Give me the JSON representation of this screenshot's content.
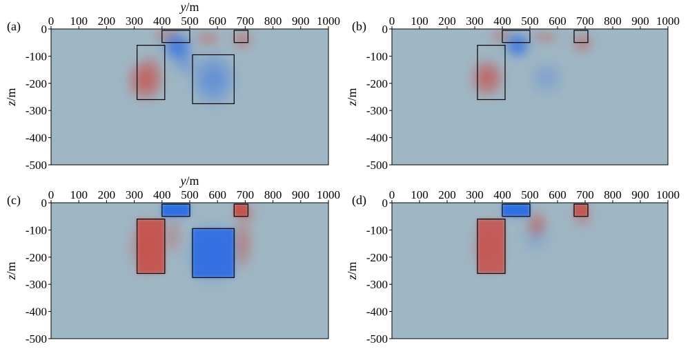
{
  "figure": {
    "panels": [
      "(a)",
      "(b)",
      "(c)",
      "(d)"
    ],
    "colors": {
      "background": "#9fb6c4",
      "positive": "#c94a43",
      "negative": "#2f6fe3",
      "box_outline": "#000000"
    }
  },
  "chart_data": [
    {
      "panel": "(a)",
      "type": "heatmap",
      "xlabel": "y/m",
      "ylabel": "z/m",
      "xlim": [
        0,
        1000
      ],
      "ylim": [
        -500,
        0
      ],
      "xticks": [
        0,
        100,
        200,
        300,
        400,
        500,
        600,
        700,
        800,
        900,
        1000
      ],
      "yticks": [
        0,
        -100,
        -200,
        -300,
        -400,
        -500
      ],
      "show_xlabel": true,
      "boxes": [
        {
          "y0": 310,
          "y1": 410,
          "z0": -60,
          "z1": -260
        },
        {
          "y0": 400,
          "y1": 500,
          "z0": -5,
          "z1": -50
        },
        {
          "y0": 510,
          "y1": 660,
          "z0": -95,
          "z1": -275
        },
        {
          "y0": 660,
          "y1": 710,
          "z0": -5,
          "z1": -50
        }
      ],
      "anomalies": [
        {
          "y": 340,
          "z": -190,
          "ry": 75,
          "rz": 85,
          "sign": 1,
          "amp": 0.85
        },
        {
          "y": 360,
          "z": -140,
          "ry": 50,
          "rz": 60,
          "sign": 1,
          "amp": 0.3
        },
        {
          "y": 420,
          "z": -25,
          "ry": 60,
          "rz": 35,
          "sign": 1,
          "amp": 0.45
        },
        {
          "y": 565,
          "z": -35,
          "ry": 55,
          "rz": 35,
          "sign": 1,
          "amp": 0.45
        },
        {
          "y": 690,
          "z": -40,
          "ry": 45,
          "rz": 40,
          "sign": 1,
          "amp": 0.55
        },
        {
          "y": 455,
          "z": -65,
          "ry": 60,
          "rz": 60,
          "sign": -1,
          "amp": 0.95
        },
        {
          "y": 585,
          "z": -185,
          "ry": 95,
          "rz": 110,
          "sign": -1,
          "amp": 0.6
        },
        {
          "y": 480,
          "z": -120,
          "ry": 50,
          "rz": 60,
          "sign": -1,
          "amp": 0.4
        }
      ]
    },
    {
      "panel": "(b)",
      "type": "heatmap",
      "xlabel": "y/m",
      "ylabel": "z/m",
      "xlim": [
        0,
        1000
      ],
      "ylim": [
        -500,
        0
      ],
      "xticks": [
        0,
        100,
        200,
        300,
        400,
        500,
        600,
        700,
        800,
        900,
        1000
      ],
      "yticks": [
        0,
        -100,
        -200,
        -300,
        -400,
        -500
      ],
      "show_xlabel": false,
      "boxes": [
        {
          "y0": 310,
          "y1": 410,
          "z0": -60,
          "z1": -260
        },
        {
          "y0": 400,
          "y1": 500,
          "z0": -5,
          "z1": -50
        },
        {
          "y0": 660,
          "y1": 710,
          "z0": -5,
          "z1": -50
        }
      ],
      "anomalies": [
        {
          "y": 345,
          "z": -180,
          "ry": 70,
          "rz": 80,
          "sign": 1,
          "amp": 0.8
        },
        {
          "y": 400,
          "z": -25,
          "ry": 55,
          "rz": 35,
          "sign": 1,
          "amp": 0.4
        },
        {
          "y": 555,
          "z": -30,
          "ry": 60,
          "rz": 30,
          "sign": 1,
          "amp": 0.4
        },
        {
          "y": 690,
          "z": -50,
          "ry": 45,
          "rz": 45,
          "sign": 1,
          "amp": 0.55
        },
        {
          "y": 455,
          "z": -60,
          "ry": 55,
          "rz": 55,
          "sign": -1,
          "amp": 0.95
        },
        {
          "y": 560,
          "z": -180,
          "ry": 70,
          "rz": 70,
          "sign": -1,
          "amp": 0.3
        }
      ]
    },
    {
      "panel": "(c)",
      "type": "heatmap",
      "xlabel": "y/m",
      "ylabel": "z/m",
      "xlim": [
        0,
        1000
      ],
      "ylim": [
        -500,
        0
      ],
      "xticks": [
        0,
        100,
        200,
        300,
        400,
        500,
        600,
        700,
        800,
        900,
        1000
      ],
      "yticks": [
        0,
        -100,
        -200,
        -300,
        -400,
        -500
      ],
      "show_xlabel": true,
      "boxes": [
        {
          "y0": 310,
          "y1": 410,
          "z0": -60,
          "z1": -260
        },
        {
          "y0": 400,
          "y1": 500,
          "z0": -5,
          "z1": -50
        },
        {
          "y0": 510,
          "y1": 660,
          "z0": -95,
          "z1": -275
        },
        {
          "y0": 660,
          "y1": 710,
          "z0": -5,
          "z1": -50
        }
      ],
      "fills": [
        {
          "y0": 310,
          "y1": 410,
          "z0": -60,
          "z1": -260,
          "sign": 1,
          "amp": 0.85
        },
        {
          "y0": 400,
          "y1": 500,
          "z0": -5,
          "z1": -50,
          "sign": -1,
          "amp": 1.0
        },
        {
          "y0": 510,
          "y1": 660,
          "z0": -95,
          "z1": -275,
          "sign": -1,
          "amp": 0.95
        },
        {
          "y0": 660,
          "y1": 710,
          "z0": -5,
          "z1": -50,
          "sign": 1,
          "amp": 0.9
        }
      ],
      "anomalies": [
        {
          "y": 345,
          "z": -160,
          "ry": 80,
          "rz": 120,
          "sign": 1,
          "amp": 0.45
        },
        {
          "y": 585,
          "z": -185,
          "ry": 110,
          "rz": 130,
          "sign": -1,
          "amp": 0.45
        },
        {
          "y": 450,
          "z": -30,
          "ry": 70,
          "rz": 40,
          "sign": -1,
          "amp": 0.35
        },
        {
          "y": 690,
          "z": -150,
          "ry": 45,
          "rz": 110,
          "sign": 1,
          "amp": 0.5
        },
        {
          "y": 700,
          "z": -40,
          "ry": 50,
          "rz": 45,
          "sign": 1,
          "amp": 0.4
        },
        {
          "y": 440,
          "z": -120,
          "ry": 40,
          "rz": 80,
          "sign": 1,
          "amp": 0.35
        }
      ]
    },
    {
      "panel": "(d)",
      "type": "heatmap",
      "xlabel": "y/m",
      "ylabel": "z/m",
      "xlim": [
        0,
        1000
      ],
      "ylim": [
        -500,
        0
      ],
      "xticks": [
        0,
        100,
        200,
        300,
        400,
        500,
        600,
        700,
        800,
        900,
        1000
      ],
      "yticks": [
        0,
        -100,
        -200,
        -300,
        -400,
        -500
      ],
      "show_xlabel": false,
      "boxes": [
        {
          "y0": 310,
          "y1": 410,
          "z0": -60,
          "z1": -260
        },
        {
          "y0": 400,
          "y1": 500,
          "z0": -5,
          "z1": -50
        },
        {
          "y0": 660,
          "y1": 710,
          "z0": -5,
          "z1": -50
        }
      ],
      "fills": [
        {
          "y0": 310,
          "y1": 410,
          "z0": -60,
          "z1": -260,
          "sign": 1,
          "amp": 0.8
        },
        {
          "y0": 400,
          "y1": 500,
          "z0": -5,
          "z1": -50,
          "sign": -1,
          "amp": 1.0
        },
        {
          "y0": 660,
          "y1": 710,
          "z0": -5,
          "z1": -50,
          "sign": 1,
          "amp": 0.85
        }
      ],
      "anomalies": [
        {
          "y": 345,
          "z": -160,
          "ry": 70,
          "rz": 110,
          "sign": 1,
          "amp": 0.35
        },
        {
          "y": 525,
          "z": -80,
          "ry": 45,
          "rz": 60,
          "sign": 1,
          "amp": 0.6
        },
        {
          "y": 690,
          "z": -50,
          "ry": 45,
          "rz": 50,
          "sign": 1,
          "amp": 0.4
        },
        {
          "y": 450,
          "z": -30,
          "ry": 65,
          "rz": 40,
          "sign": -1,
          "amp": 0.35
        },
        {
          "y": 520,
          "z": -130,
          "ry": 60,
          "rz": 60,
          "sign": -1,
          "amp": 0.2
        }
      ]
    }
  ]
}
